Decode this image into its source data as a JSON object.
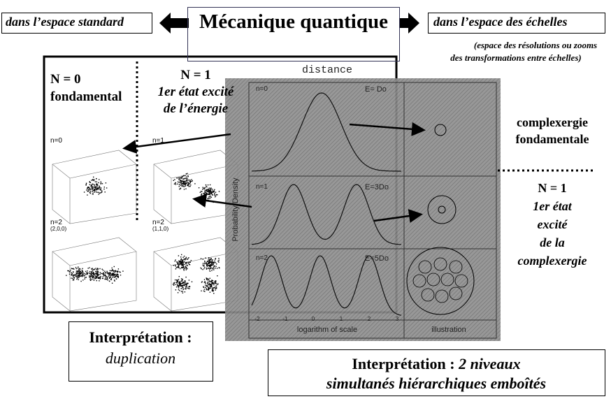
{
  "header": {
    "left": "dans l’espace standard",
    "title": "Mécanique quantique",
    "right": "dans l’espace des échelles",
    "note": [
      "(espace des résolutions ou zooms",
      "des transformations entre échelles)"
    ]
  },
  "left_panel": {
    "n0": {
      "label": "N = 0",
      "desc": "fondamental"
    },
    "n1": {
      "label": "N = 1",
      "desc": [
        "1er état excité",
        "de l’énergie"
      ]
    },
    "plots": [
      {
        "label": "n=0"
      },
      {
        "label": "n=1"
      },
      {
        "label": "n=2",
        "sub": "(2,0,0)"
      },
      {
        "label": "n=2",
        "sub": "(1,1,0)"
      }
    ]
  },
  "center_panel": {
    "title": "distance",
    "y_label": "Probability Density",
    "x_label": "logarithm of scale",
    "illustration_label": "illustration",
    "x_ticks": [
      "-2",
      "-1",
      "0",
      "1",
      "2",
      "3"
    ],
    "rows": [
      {
        "n": "n=0",
        "energy": "E= Do"
      },
      {
        "n": "n=1",
        "energy": "E=3Do"
      },
      {
        "n": "n=2",
        "energy": "E=5Do"
      }
    ]
  },
  "right_panel": {
    "fundamental": [
      "complexergie",
      "fondamentale"
    ],
    "excited": {
      "label": "N = 1",
      "desc": [
        "1er état",
        "excité",
        "de la",
        "complexergie"
      ]
    }
  },
  "interpretations": {
    "left": [
      "Interprétation :",
      "duplication"
    ],
    "right": {
      "lead": "Interprétation :",
      "italic": "2 niveaux",
      "line2": "simultanés hiérarchiques emboîtés"
    }
  }
}
